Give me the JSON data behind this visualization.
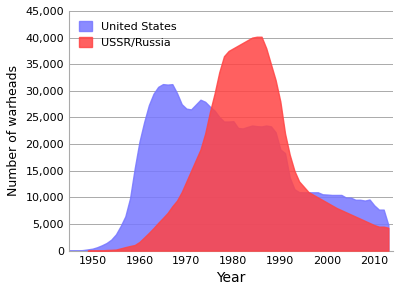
{
  "xlabel": "Year",
  "ylabel": "Number of warheads",
  "us_data": {
    "years": [
      1945,
      1946,
      1947,
      1948,
      1949,
      1950,
      1951,
      1952,
      1953,
      1954,
      1955,
      1956,
      1957,
      1958,
      1959,
      1960,
      1961,
      1962,
      1963,
      1964,
      1965,
      1966,
      1967,
      1968,
      1969,
      1970,
      1971,
      1972,
      1973,
      1974,
      1975,
      1976,
      1977,
      1978,
      1979,
      1980,
      1981,
      1982,
      1983,
      1984,
      1985,
      1986,
      1987,
      1988,
      1989,
      1990,
      1991,
      1992,
      1993,
      1994,
      1995,
      1996,
      1997,
      1998,
      1999,
      2000,
      2001,
      2002,
      2003,
      2004,
      2005,
      2006,
      2007,
      2008,
      2009,
      2010,
      2011,
      2012,
      2013
    ],
    "values": [
      6,
      11,
      32,
      110,
      235,
      369,
      640,
      1005,
      1436,
      2063,
      3057,
      4618,
      6444,
      9822,
      15468,
      20434,
      24111,
      27297,
      29463,
      30751,
      31265,
      31175,
      31255,
      29584,
      27490,
      26662,
      26516,
      27427,
      28335,
      27945,
      27052,
      26290,
      25099,
      24243,
      24243,
      24304,
      23031,
      22937,
      23228,
      23490,
      23368,
      23317,
      23490,
      23335,
      22217,
      19008,
      18306,
      13731,
      11536,
      10979,
      10953,
      10953,
      10953,
      10953,
      10577,
      10526,
      10455,
      10455,
      10455,
      9960,
      9960,
      9552,
      9552,
      9400,
      9600,
      8500,
      7700,
      7700,
      4800
    ],
    "color": "#7777ff",
    "alpha": 0.85
  },
  "ussr_data": {
    "years": [
      1949,
      1950,
      1951,
      1952,
      1953,
      1954,
      1955,
      1956,
      1957,
      1958,
      1959,
      1960,
      1961,
      1962,
      1963,
      1964,
      1965,
      1966,
      1967,
      1968,
      1969,
      1970,
      1971,
      1972,
      1973,
      1974,
      1975,
      1976,
      1977,
      1978,
      1979,
      1980,
      1981,
      1982,
      1983,
      1984,
      1985,
      1986,
      1987,
      1988,
      1989,
      1990,
      1991,
      1992,
      1993,
      1994,
      1995,
      1996,
      1997,
      1998,
      1999,
      2000,
      2001,
      2002,
      2003,
      2004,
      2005,
      2006,
      2007,
      2008,
      2009,
      2010,
      2011,
      2012,
      2013
    ],
    "values": [
      1,
      5,
      25,
      50,
      120,
      150,
      200,
      426,
      660,
      869,
      1060,
      1627,
      2471,
      3322,
      4238,
      5221,
      6129,
      7089,
      8339,
      9399,
      11000,
      13000,
      15000,
      17000,
      19000,
      22000,
      26000,
      29500,
      33500,
      36500,
      37500,
      38000,
      38500,
      39000,
      39500,
      40000,
      40159,
      40159,
      38000,
      35000,
      32000,
      28000,
      22000,
      18000,
      15000,
      13000,
      12000,
      11000,
      10500,
      10000,
      9500,
      9000,
      8500,
      8000,
      7600,
      7200,
      6800,
      6400,
      6000,
      5600,
      5200,
      4800,
      4500,
      4500,
      4300
    ],
    "color": "#ff4444",
    "alpha": 0.85
  },
  "ylim": [
    0,
    45000
  ],
  "xlim": [
    1945,
    2014
  ],
  "yticks": [
    0,
    5000,
    10000,
    15000,
    20000,
    25000,
    30000,
    35000,
    40000,
    45000
  ],
  "xticks": [
    1950,
    1960,
    1970,
    1980,
    1990,
    2000,
    2010
  ],
  "background_color": "#ffffff",
  "grid_color": "#aaaaaa",
  "legend_labels": [
    "United States",
    "USSR/Russia"
  ]
}
